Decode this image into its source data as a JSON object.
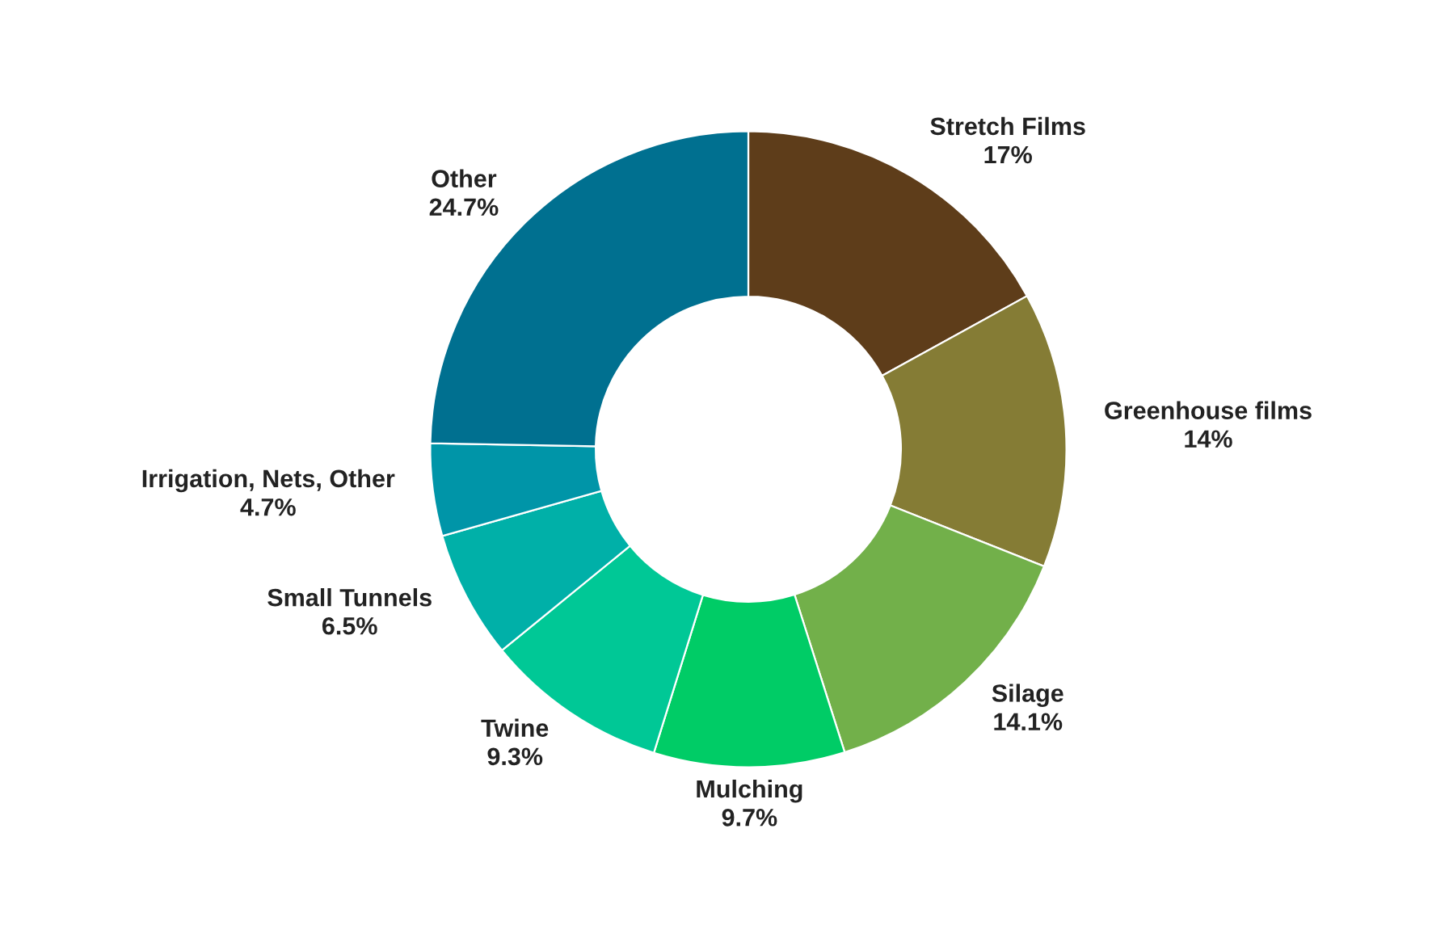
{
  "chart_data": {
    "type": "donut",
    "categories": [
      "Stretch Films",
      "Greenhouse films",
      "Silage",
      "Mulching",
      "Twine",
      "Small Tunnels",
      "Irrigation, Nets, Other",
      "Other"
    ],
    "values": [
      17,
      14,
      14.1,
      9.7,
      9.3,
      6.5,
      4.7,
      24.7
    ],
    "value_labels": [
      "17%",
      "14%",
      "14.1%",
      "9.7%",
      "9.3%",
      "6.5%",
      "4.7%",
      "24.7%"
    ],
    "colors": [
      "#5e3d1a",
      "#857c35",
      "#72b04a",
      "#00cc66",
      "#00c896",
      "#00b0a8",
      "#0095a8",
      "#007090"
    ]
  }
}
